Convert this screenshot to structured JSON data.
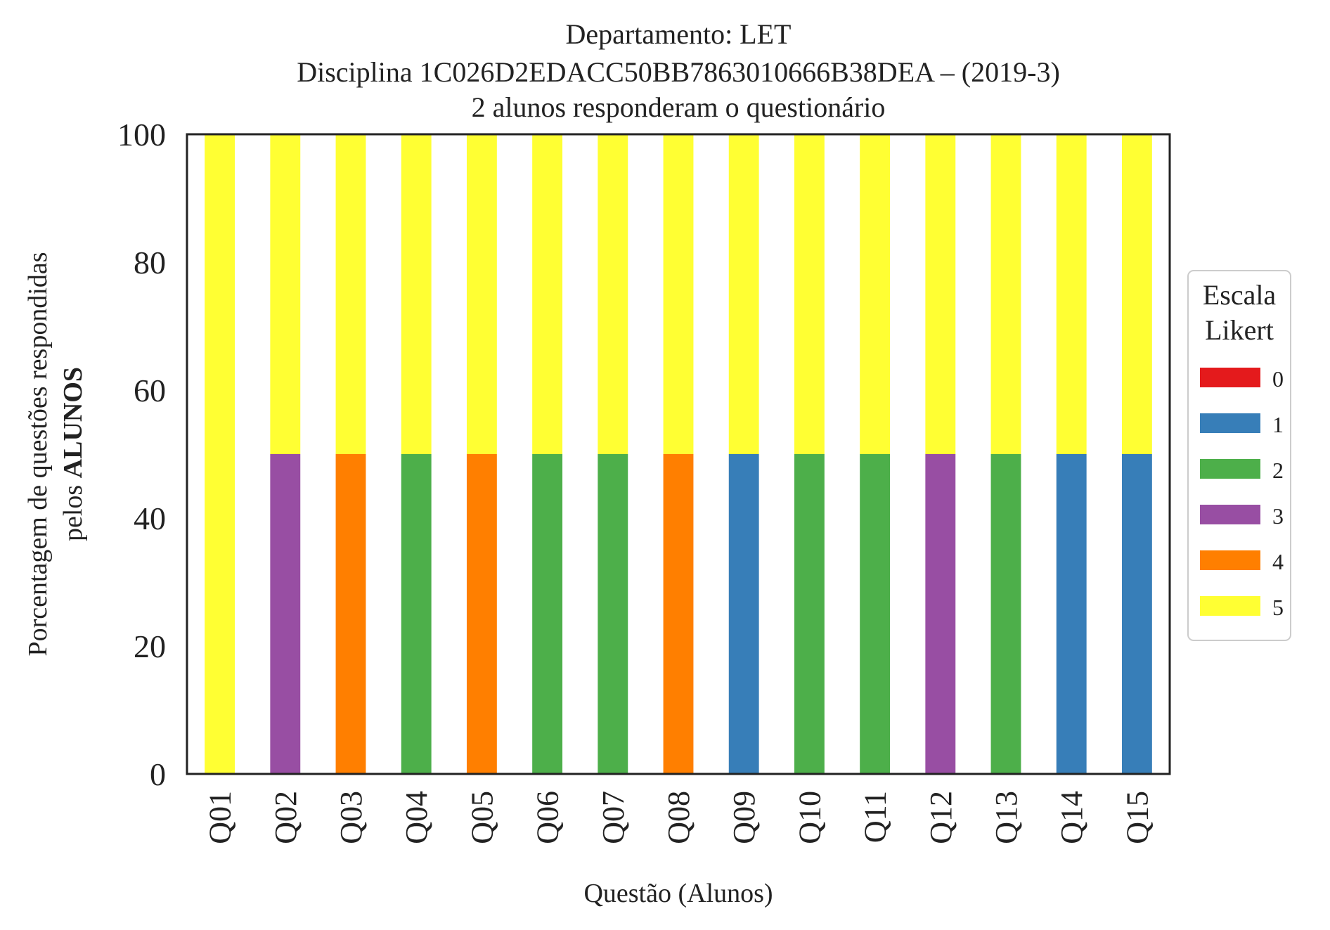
{
  "chart_data": {
    "type": "bar",
    "stacked": true,
    "title_lines": [
      "Departamento: LET",
      "Disciplina 1C026D2EDACC50BB7863010666B38DEA – (2019-3)",
      "2 alunos responderam o questionário"
    ],
    "xlabel": "Questão (Alunos)",
    "ylabel_line1": "Porcentagem de questões respondidas",
    "ylabel_line2_prefix": "pelos ",
    "ylabel_line2_bold": "ALUNOS",
    "ylim": [
      0,
      100
    ],
    "yticks": [
      "0",
      "20",
      "40",
      "60",
      "80",
      "100"
    ],
    "grid": false,
    "legend_position": "right-center",
    "legend": {
      "title_lines": [
        "Escala",
        "Likert"
      ],
      "entries": [
        "0",
        "1",
        "2",
        "3",
        "4",
        "5"
      ]
    },
    "categories": [
      "Q01",
      "Q02",
      "Q03",
      "Q04",
      "Q05",
      "Q06",
      "Q07",
      "Q08",
      "Q09",
      "Q10",
      "Q11",
      "Q12",
      "Q13",
      "Q14",
      "Q15"
    ],
    "series": [
      {
        "name": "0",
        "color": "#e41a1c",
        "values": [
          0,
          0,
          0,
          0,
          0,
          0,
          0,
          0,
          0,
          0,
          0,
          0,
          0,
          0,
          0
        ]
      },
      {
        "name": "1",
        "color": "#377eb8",
        "values": [
          0,
          0,
          0,
          0,
          0,
          0,
          0,
          0,
          50,
          0,
          0,
          0,
          0,
          50,
          50
        ]
      },
      {
        "name": "2",
        "color": "#4daf4a",
        "values": [
          0,
          0,
          0,
          50,
          0,
          50,
          50,
          0,
          0,
          50,
          50,
          0,
          50,
          0,
          0
        ]
      },
      {
        "name": "3",
        "color": "#984ea3",
        "values": [
          0,
          50,
          0,
          0,
          0,
          0,
          0,
          0,
          0,
          0,
          0,
          50,
          0,
          0,
          0
        ]
      },
      {
        "name": "4",
        "color": "#ff7f00",
        "values": [
          0,
          0,
          50,
          0,
          50,
          0,
          0,
          50,
          0,
          0,
          0,
          0,
          0,
          0,
          0
        ]
      },
      {
        "name": "5",
        "color": "#ffff33",
        "values": [
          100,
          50,
          50,
          50,
          50,
          50,
          50,
          50,
          50,
          50,
          50,
          50,
          50,
          50,
          50
        ]
      }
    ]
  }
}
